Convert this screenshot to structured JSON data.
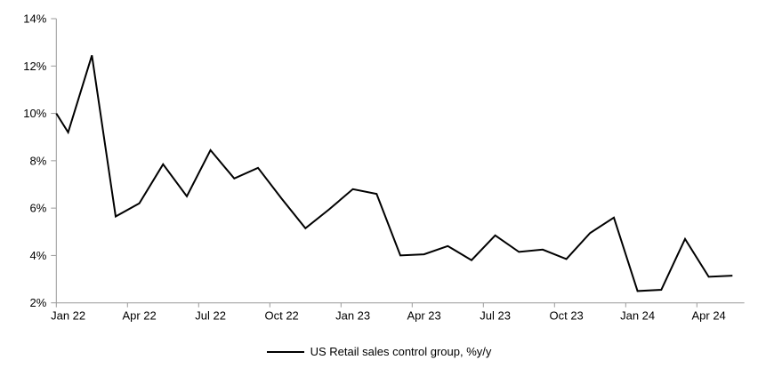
{
  "chart_data": {
    "type": "line",
    "title": "",
    "legend": "US Retail sales control group, %y/y",
    "legend_position": "bottom-center",
    "grid": false,
    "line_color": "#000000",
    "axis_color": "#9a9a9a",
    "text_color": "#000000",
    "background_color": "#ffffff",
    "y_axis": {
      "min": 2,
      "max": 14,
      "step": 2,
      "tick_labels": [
        "2%",
        "4%",
        "6%",
        "8%",
        "10%",
        "12%",
        "14%"
      ],
      "unit": "%"
    },
    "x_axis": {
      "tick_labels": [
        "Jan 22",
        "Apr 22",
        "Jul 22",
        "Oct 22",
        "Jan 23",
        "Apr 23",
        "Jul 23",
        "Oct 23",
        "Jan 24",
        "Apr 24"
      ],
      "months_per_tick": 3
    },
    "left_edge_entry_value": 10.0,
    "series": [
      {
        "name": "US Retail sales control group, %y/y",
        "x": [
          "Jan 22",
          "Feb 22",
          "Mar 22",
          "Apr 22",
          "May 22",
          "Jun 22",
          "Jul 22",
          "Aug 22",
          "Sep 22",
          "Oct 22",
          "Nov 22",
          "Dec 22",
          "Jan 23",
          "Feb 23",
          "Mar 23",
          "Apr 23",
          "May 23",
          "Jun 23",
          "Jul 23",
          "Aug 23",
          "Sep 23",
          "Oct 23",
          "Nov 23",
          "Dec 23",
          "Jan 24",
          "Feb 24",
          "Mar 24",
          "Apr 24",
          "May 24"
        ],
        "values": [
          9.2,
          12.45,
          5.65,
          6.2,
          7.85,
          6.5,
          8.45,
          7.25,
          7.7,
          6.4,
          5.15,
          5.95,
          6.8,
          6.6,
          4.0,
          4.05,
          4.4,
          3.8,
          4.85,
          4.15,
          4.25,
          3.85,
          4.95,
          5.6,
          2.5,
          2.55,
          4.7,
          3.1,
          3.15
        ]
      }
    ]
  },
  "layout_labels": {
    "chart_region": "line chart plot area"
  }
}
